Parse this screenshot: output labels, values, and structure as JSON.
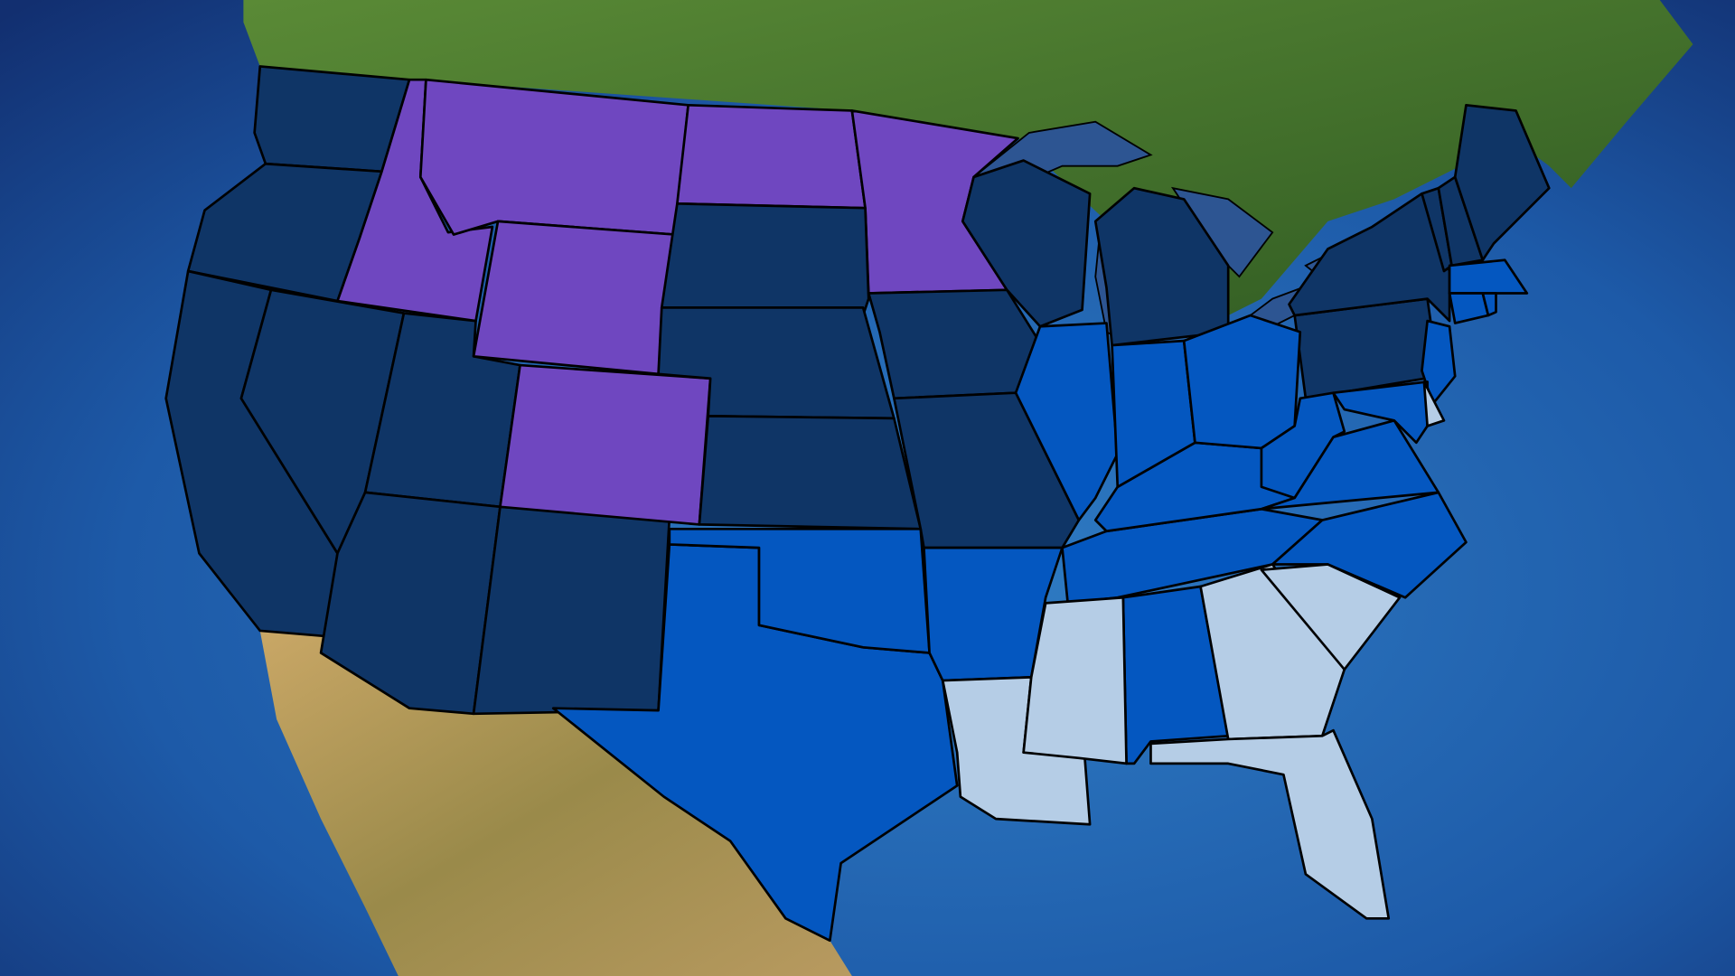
{
  "map": {
    "region": "contiguous-united-states",
    "category_colors": {
      "dark": "#0f3566",
      "purple": "#6f47c0",
      "bright": "#0457c0",
      "light": "#b5cde6"
    },
    "ocean_color": "#1d5aa8",
    "canada_color": "#3d6b2a",
    "mexico_color": "#b79a5c",
    "lakes_color": "#2d5592",
    "states": {
      "WA": "dark",
      "OR": "dark",
      "CA": "dark",
      "NV": "dark",
      "UT": "dark",
      "AZ": "dark",
      "NM": "dark",
      "ID": "purple",
      "MT": "purple",
      "WY": "purple",
      "CO": "purple",
      "ND": "purple",
      "MN": "purple",
      "SD": "dark",
      "NE": "dark",
      "KS": "dark",
      "IA": "dark",
      "MO": "dark",
      "WI": "dark",
      "MI": "dark",
      "PA": "dark",
      "NY": "dark",
      "VT": "dark",
      "NH": "dark",
      "ME": "dark",
      "TX": "bright",
      "OK": "bright",
      "AR": "bright",
      "TN": "bright",
      "KY": "bright",
      "IL": "bright",
      "IN": "bright",
      "OH": "bright",
      "WV": "bright",
      "VA": "bright",
      "NC": "bright",
      "AL": "bright",
      "NJ": "bright",
      "MA": "bright",
      "CT": "bright",
      "RI": "bright",
      "MD": "bright",
      "LA": "light",
      "MS": "light",
      "GA": "light",
      "SC": "light",
      "FL": "light",
      "DE": "light"
    }
  }
}
